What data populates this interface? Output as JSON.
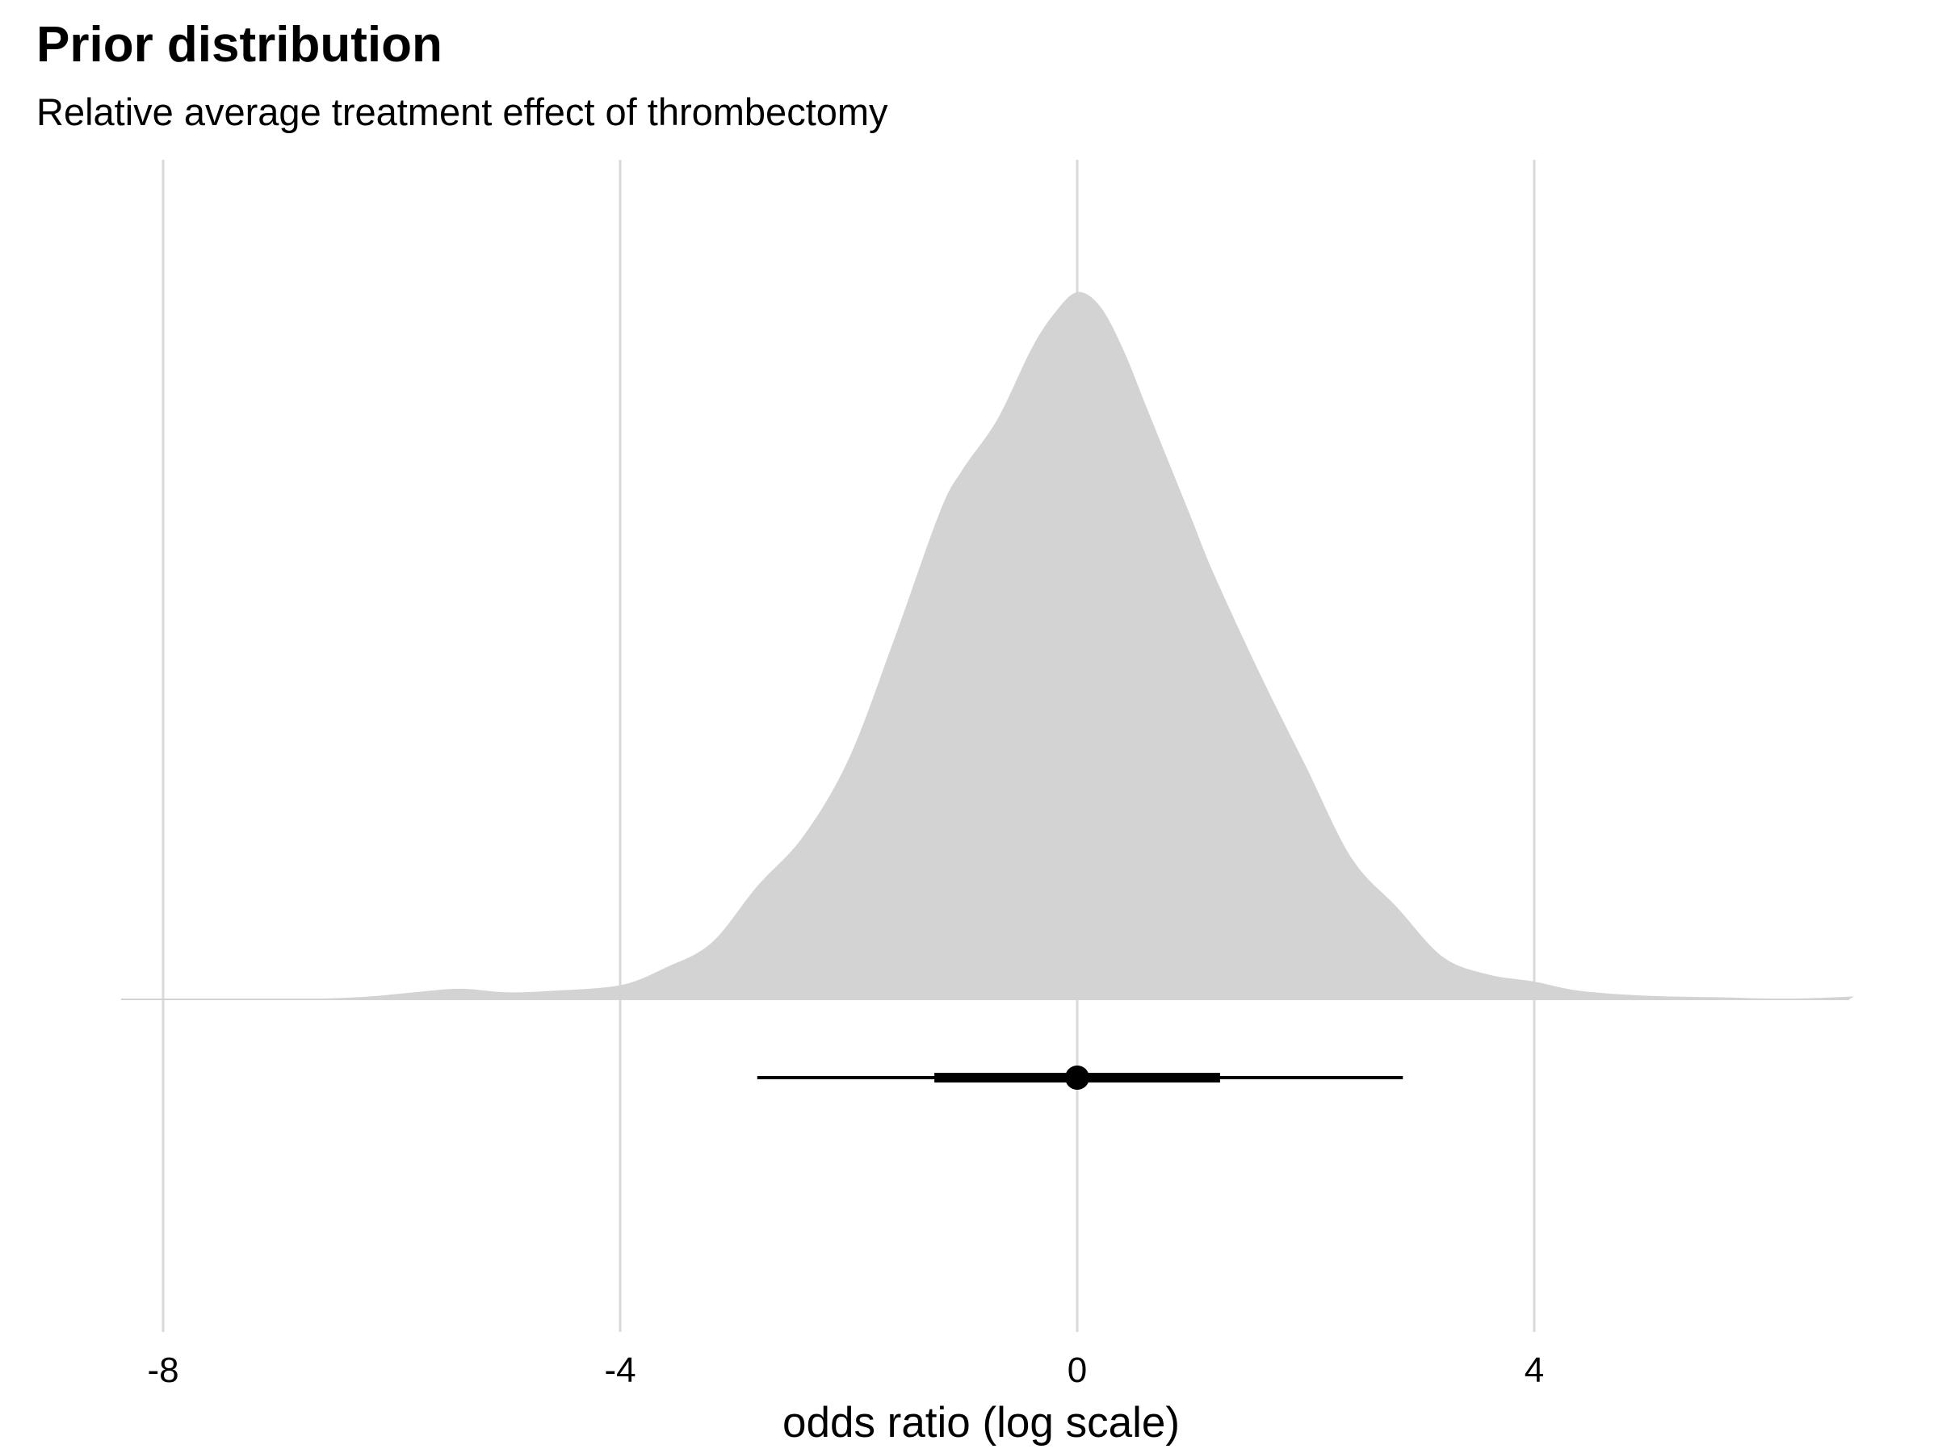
{
  "chart_data": {
    "type": "area",
    "title": "Prior distribution",
    "subtitle": "Relative average treatment effect of thrombectomy",
    "xlabel": "odds ratio (log scale)",
    "ylabel": "",
    "xlim": [
      -8.35,
      6.8
    ],
    "x_ticks": [
      -8,
      -4,
      0,
      4
    ],
    "x_tick_labels": [
      "-8",
      "-4",
      "0",
      "4"
    ],
    "grid": "vertical major only",
    "legend": "none",
    "density": {
      "x": [
        -8.35,
        -7.0,
        -6.3,
        -5.8,
        -5.4,
        -5.0,
        -4.6,
        -4.0,
        -3.6,
        -3.2,
        -2.8,
        -2.4,
        -2.0,
        -1.6,
        -1.2,
        -1.0,
        -0.7,
        -0.4,
        -0.2,
        0.0,
        0.2,
        0.4,
        0.6,
        0.8,
        1.0,
        1.2,
        1.6,
        2.0,
        2.4,
        2.8,
        3.2,
        3.6,
        4.0,
        4.4,
        5.0,
        5.6,
        6.2,
        6.8
      ],
      "y": [
        0.0,
        0.0,
        0.003,
        0.01,
        0.015,
        0.01,
        0.012,
        0.02,
        0.045,
        0.08,
        0.16,
        0.23,
        0.34,
        0.51,
        0.69,
        0.75,
        0.82,
        0.92,
        0.97,
        1.0,
        0.98,
        0.92,
        0.84,
        0.76,
        0.68,
        0.6,
        0.46,
        0.33,
        0.2,
        0.13,
        0.06,
        0.035,
        0.025,
        0.012,
        0.005,
        0.003,
        0.001,
        0.004
      ]
    },
    "interval": {
      "point": 0.0,
      "inner": [
        -1.25,
        1.25
      ],
      "outer": [
        -2.8,
        2.85
      ]
    },
    "colors": {
      "density_fill": "#d3d3d3",
      "grid": "#d9d9d9",
      "interval": "#000000"
    }
  }
}
